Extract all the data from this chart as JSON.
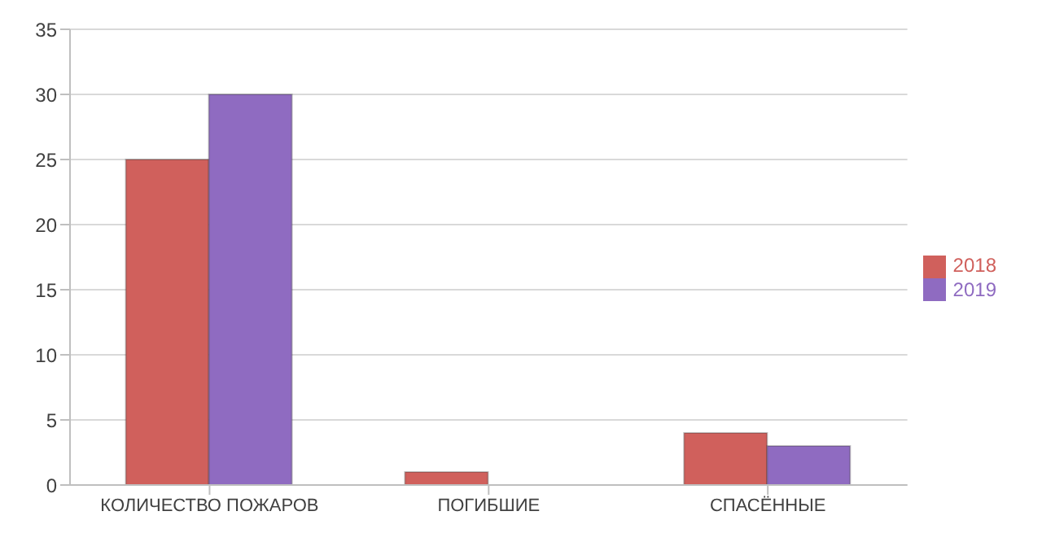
{
  "chart_data": {
    "type": "bar",
    "categories": [
      "КОЛИЧЕСТВО ПОЖАРОВ",
      "ПОГИБШИЕ",
      "СПАСЁННЫЕ"
    ],
    "series": [
      {
        "name": "2018",
        "color": "#d0605c",
        "values": [
          25,
          1,
          4
        ]
      },
      {
        "name": "2019",
        "color": "#8f6bc1",
        "values": [
          30,
          0,
          3
        ]
      }
    ],
    "ylim": [
      0,
      35
    ],
    "yticks": [
      0,
      5,
      10,
      15,
      20,
      25,
      30,
      35
    ],
    "grid": "y",
    "legend": "right"
  }
}
